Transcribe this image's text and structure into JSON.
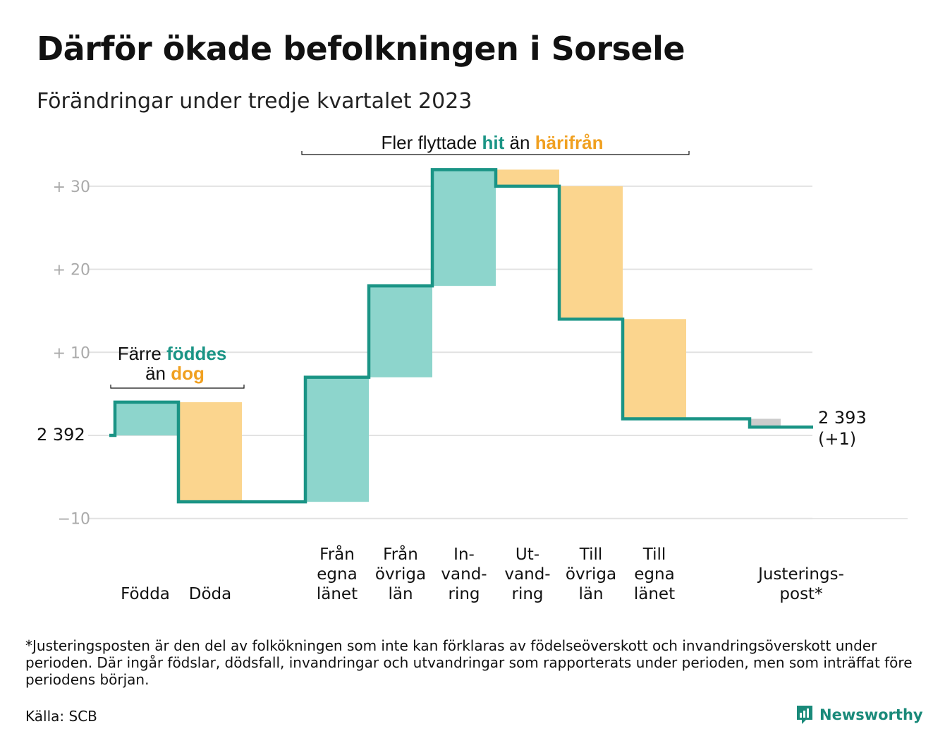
{
  "title": "Därför ökade befolkningen i Sorsele",
  "subtitle": "Förändringar under tredje kvartalet 2023",
  "colors": {
    "inflow": "#8dd5cc",
    "outflow": "#fbd58e",
    "adjustment": "#cccccc",
    "line": "#1a9485",
    "grid": "#e2e2e2",
    "accent_hit": "#1a9485",
    "accent_away": "#f0a020"
  },
  "chart_data": {
    "type": "waterfall",
    "start_value_label": "2  392",
    "end_value_label": [
      "2 393",
      "(+1)"
    ],
    "ylim": [
      -10,
      32
    ],
    "yticks": [
      {
        "value": 30,
        "label": "+  30"
      },
      {
        "value": 20,
        "label": "+  20"
      },
      {
        "value": 10,
        "label": "+  10"
      },
      {
        "value": -10,
        "label": "−10"
      }
    ],
    "steps": [
      {
        "name": "Födda",
        "label_lines": [
          "Födda"
        ],
        "change": 4,
        "kind": "inflow"
      },
      {
        "name": "Döda",
        "label_lines": [
          "Döda"
        ],
        "change": -12,
        "kind": "outflow"
      },
      {
        "name": "gap",
        "label_lines": [],
        "change": 0,
        "kind": "gap"
      },
      {
        "name": "Från egna länet",
        "label_lines": [
          "Från",
          "egna",
          "länet"
        ],
        "change": 15,
        "kind": "inflow"
      },
      {
        "name": "Från övriga län",
        "label_lines": [
          "Från",
          "övriga",
          "län"
        ],
        "change": 11,
        "kind": "inflow"
      },
      {
        "name": "Invandring",
        "label_lines": [
          "In-",
          "vand-",
          "ring"
        ],
        "change": 14,
        "kind": "inflow"
      },
      {
        "name": "Utvandring",
        "label_lines": [
          "Ut-",
          "vand-",
          "ring"
        ],
        "change": -2,
        "kind": "outflow"
      },
      {
        "name": "Till övriga län",
        "label_lines": [
          "Till",
          "övriga",
          "län"
        ],
        "change": -16,
        "kind": "outflow"
      },
      {
        "name": "Till egna länet",
        "label_lines": [
          "Till",
          "egna",
          "länet"
        ],
        "change": -12,
        "kind": "outflow"
      },
      {
        "name": "gap",
        "label_lines": [],
        "change": 0,
        "kind": "gap"
      },
      {
        "name": "Justeringspost*",
        "label_lines": [
          "Justerings-",
          "post*"
        ],
        "change": -1,
        "kind": "adjustment"
      }
    ],
    "annotations": {
      "births": {
        "line1_pre": "Färre",
        "line1_hit": "föddes",
        "line2_pre": "än",
        "line2_away": "dog"
      },
      "migration": {
        "pre": "Fler flyttade",
        "hit": "hit",
        "mid": "än",
        "away": "härifrån"
      }
    }
  },
  "footnote": "*Justeringsposten är den del av folkökningen som inte kan förklaras av födelseöverskott och invandringsöverskott under perioden. Där ingår födslar, dödsfall, invandringar och utvandringar som rapporterats under perioden, men som inträffat före periodens början.",
  "source": "Källa: SCB",
  "brand": "Newsworthy",
  "logo_icon": "newsworthy-bar-chart-icon"
}
